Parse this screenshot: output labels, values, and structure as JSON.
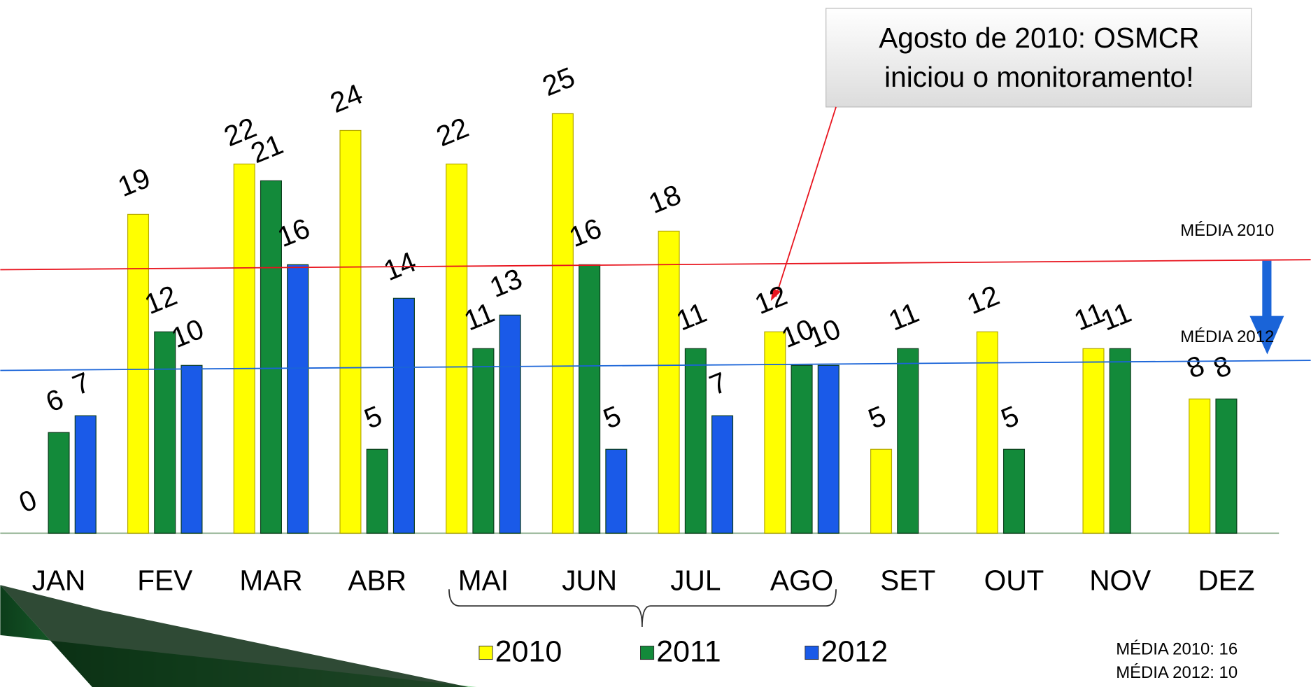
{
  "chart_data": {
    "type": "bar",
    "categories": [
      "JAN",
      "FEV",
      "MAR",
      "ABR",
      "MAI",
      "JUN",
      "JUL",
      "AGO",
      "SET",
      "OUT",
      "NOV",
      "DEZ"
    ],
    "series": [
      {
        "name": "2010",
        "color": "#ffff00",
        "values": [
          0,
          19,
          22,
          24,
          22,
          25,
          18,
          12,
          5,
          12,
          11,
          8
        ]
      },
      {
        "name": "2011",
        "color": "#138a3a",
        "values": [
          6,
          12,
          21,
          5,
          11,
          16,
          11,
          10,
          11,
          5,
          11,
          8
        ]
      },
      {
        "name": "2012",
        "color": "#1a5ae8",
        "values": [
          7,
          10,
          16,
          14,
          13,
          5,
          7,
          10,
          null,
          null,
          null,
          null
        ]
      }
    ],
    "ylim": [
      0,
      25
    ],
    "mean_lines": [
      {
        "name": "MÉDIA 2010",
        "value": 16,
        "color": "#e8141e"
      },
      {
        "name": "MÉDIA 2012",
        "value": 10,
        "color": "#1a64d8"
      }
    ],
    "callout": [
      "Agosto de 2010: OSMCR",
      "iniciou o monitoramento!"
    ],
    "footnotes": [
      "MÉDIA 2010: 16",
      "MÉDIA 2012: 10"
    ]
  }
}
